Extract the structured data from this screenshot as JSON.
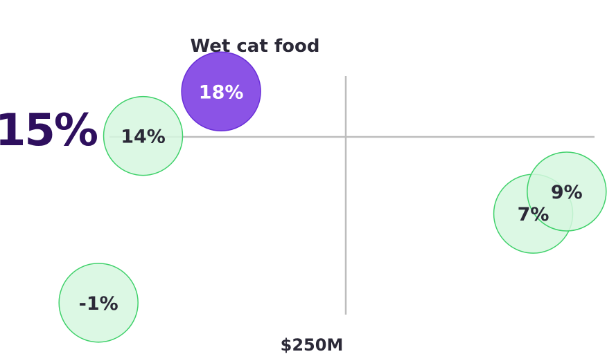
{
  "chart_data": {
    "type": "scatter",
    "title": "Wet cat food",
    "reference_lines": {
      "x_label": "$250M",
      "y_label": "15%"
    },
    "points": [
      {
        "x": 60,
        "y": 14,
        "size": 1,
        "label": "14%",
        "highlight": false
      },
      {
        "x": 130,
        "y": 18,
        "size": 1,
        "label": "18%",
        "highlight": true
      },
      {
        "x": 20,
        "y": -1,
        "size": 1,
        "label": "-1%",
        "highlight": false
      },
      {
        "x": 410,
        "y": 7,
        "size": 1,
        "label": "7%",
        "highlight": false
      },
      {
        "x": 440,
        "y": 9,
        "size": 1,
        "label": "9%",
        "highlight": false
      }
    ],
    "grid": false,
    "colors": {
      "highlight_fill": "#8b53e6",
      "highlight_stroke": "#6a2fd8",
      "highlight_text": "#ffffff",
      "normal_fill": "#d6f7df",
      "normal_stroke": "#3fd16a",
      "normal_text": "#2b2937",
      "reference_line": "#bdbdbd"
    }
  }
}
